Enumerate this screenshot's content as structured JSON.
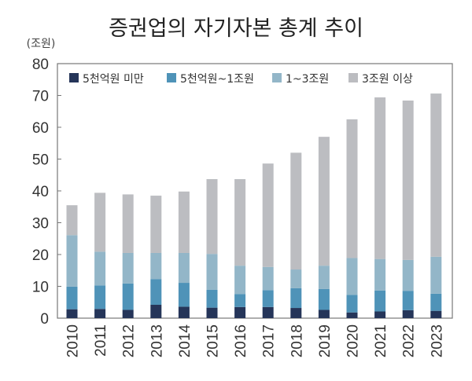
{
  "chart_data": {
    "type": "bar",
    "stacked": true,
    "title": "증권업의 자기자본 총계 추이",
    "unit_label": "(조원)",
    "xlabel": "",
    "ylabel": "",
    "ylim": [
      0,
      80
    ],
    "yticks": [
      0,
      10,
      20,
      30,
      40,
      50,
      60,
      70,
      80
    ],
    "legend_position": "top",
    "grid": false,
    "categories": [
      "2010",
      "2011",
      "2012",
      "2013",
      "2014",
      "2015",
      "2016",
      "2017",
      "2018",
      "2019",
      "2020",
      "2021",
      "2022",
      "2023"
    ],
    "series": [
      {
        "name": "5천억원 미만",
        "color": "#253559",
        "values": [
          2.8,
          2.9,
          2.6,
          4.2,
          3.6,
          3.3,
          3.5,
          3.5,
          3.2,
          2.6,
          1.8,
          2.1,
          2.5,
          2.3
        ]
      },
      {
        "name": "5천억원~1조원",
        "color": "#4f93b8",
        "values": [
          7.1,
          7.4,
          8.3,
          8.1,
          7.5,
          5.6,
          4.1,
          5.3,
          6.2,
          6.6,
          5.5,
          6.6,
          6.1,
          5.4
        ]
      },
      {
        "name": "1~3조원",
        "color": "#93b6c8",
        "values": [
          16.2,
          10.6,
          9.6,
          8.2,
          9.4,
          11.3,
          8.9,
          7.3,
          5.9,
          7.3,
          11.6,
          9.9,
          9.7,
          11.6
        ]
      },
      {
        "name": "3조원 이상",
        "color": "#bcbdc1",
        "values": [
          9.4,
          18.5,
          18.4,
          18.0,
          19.3,
          23.5,
          27.2,
          32.5,
          36.7,
          40.5,
          43.6,
          50.8,
          50.1,
          51.3
        ]
      }
    ]
  }
}
